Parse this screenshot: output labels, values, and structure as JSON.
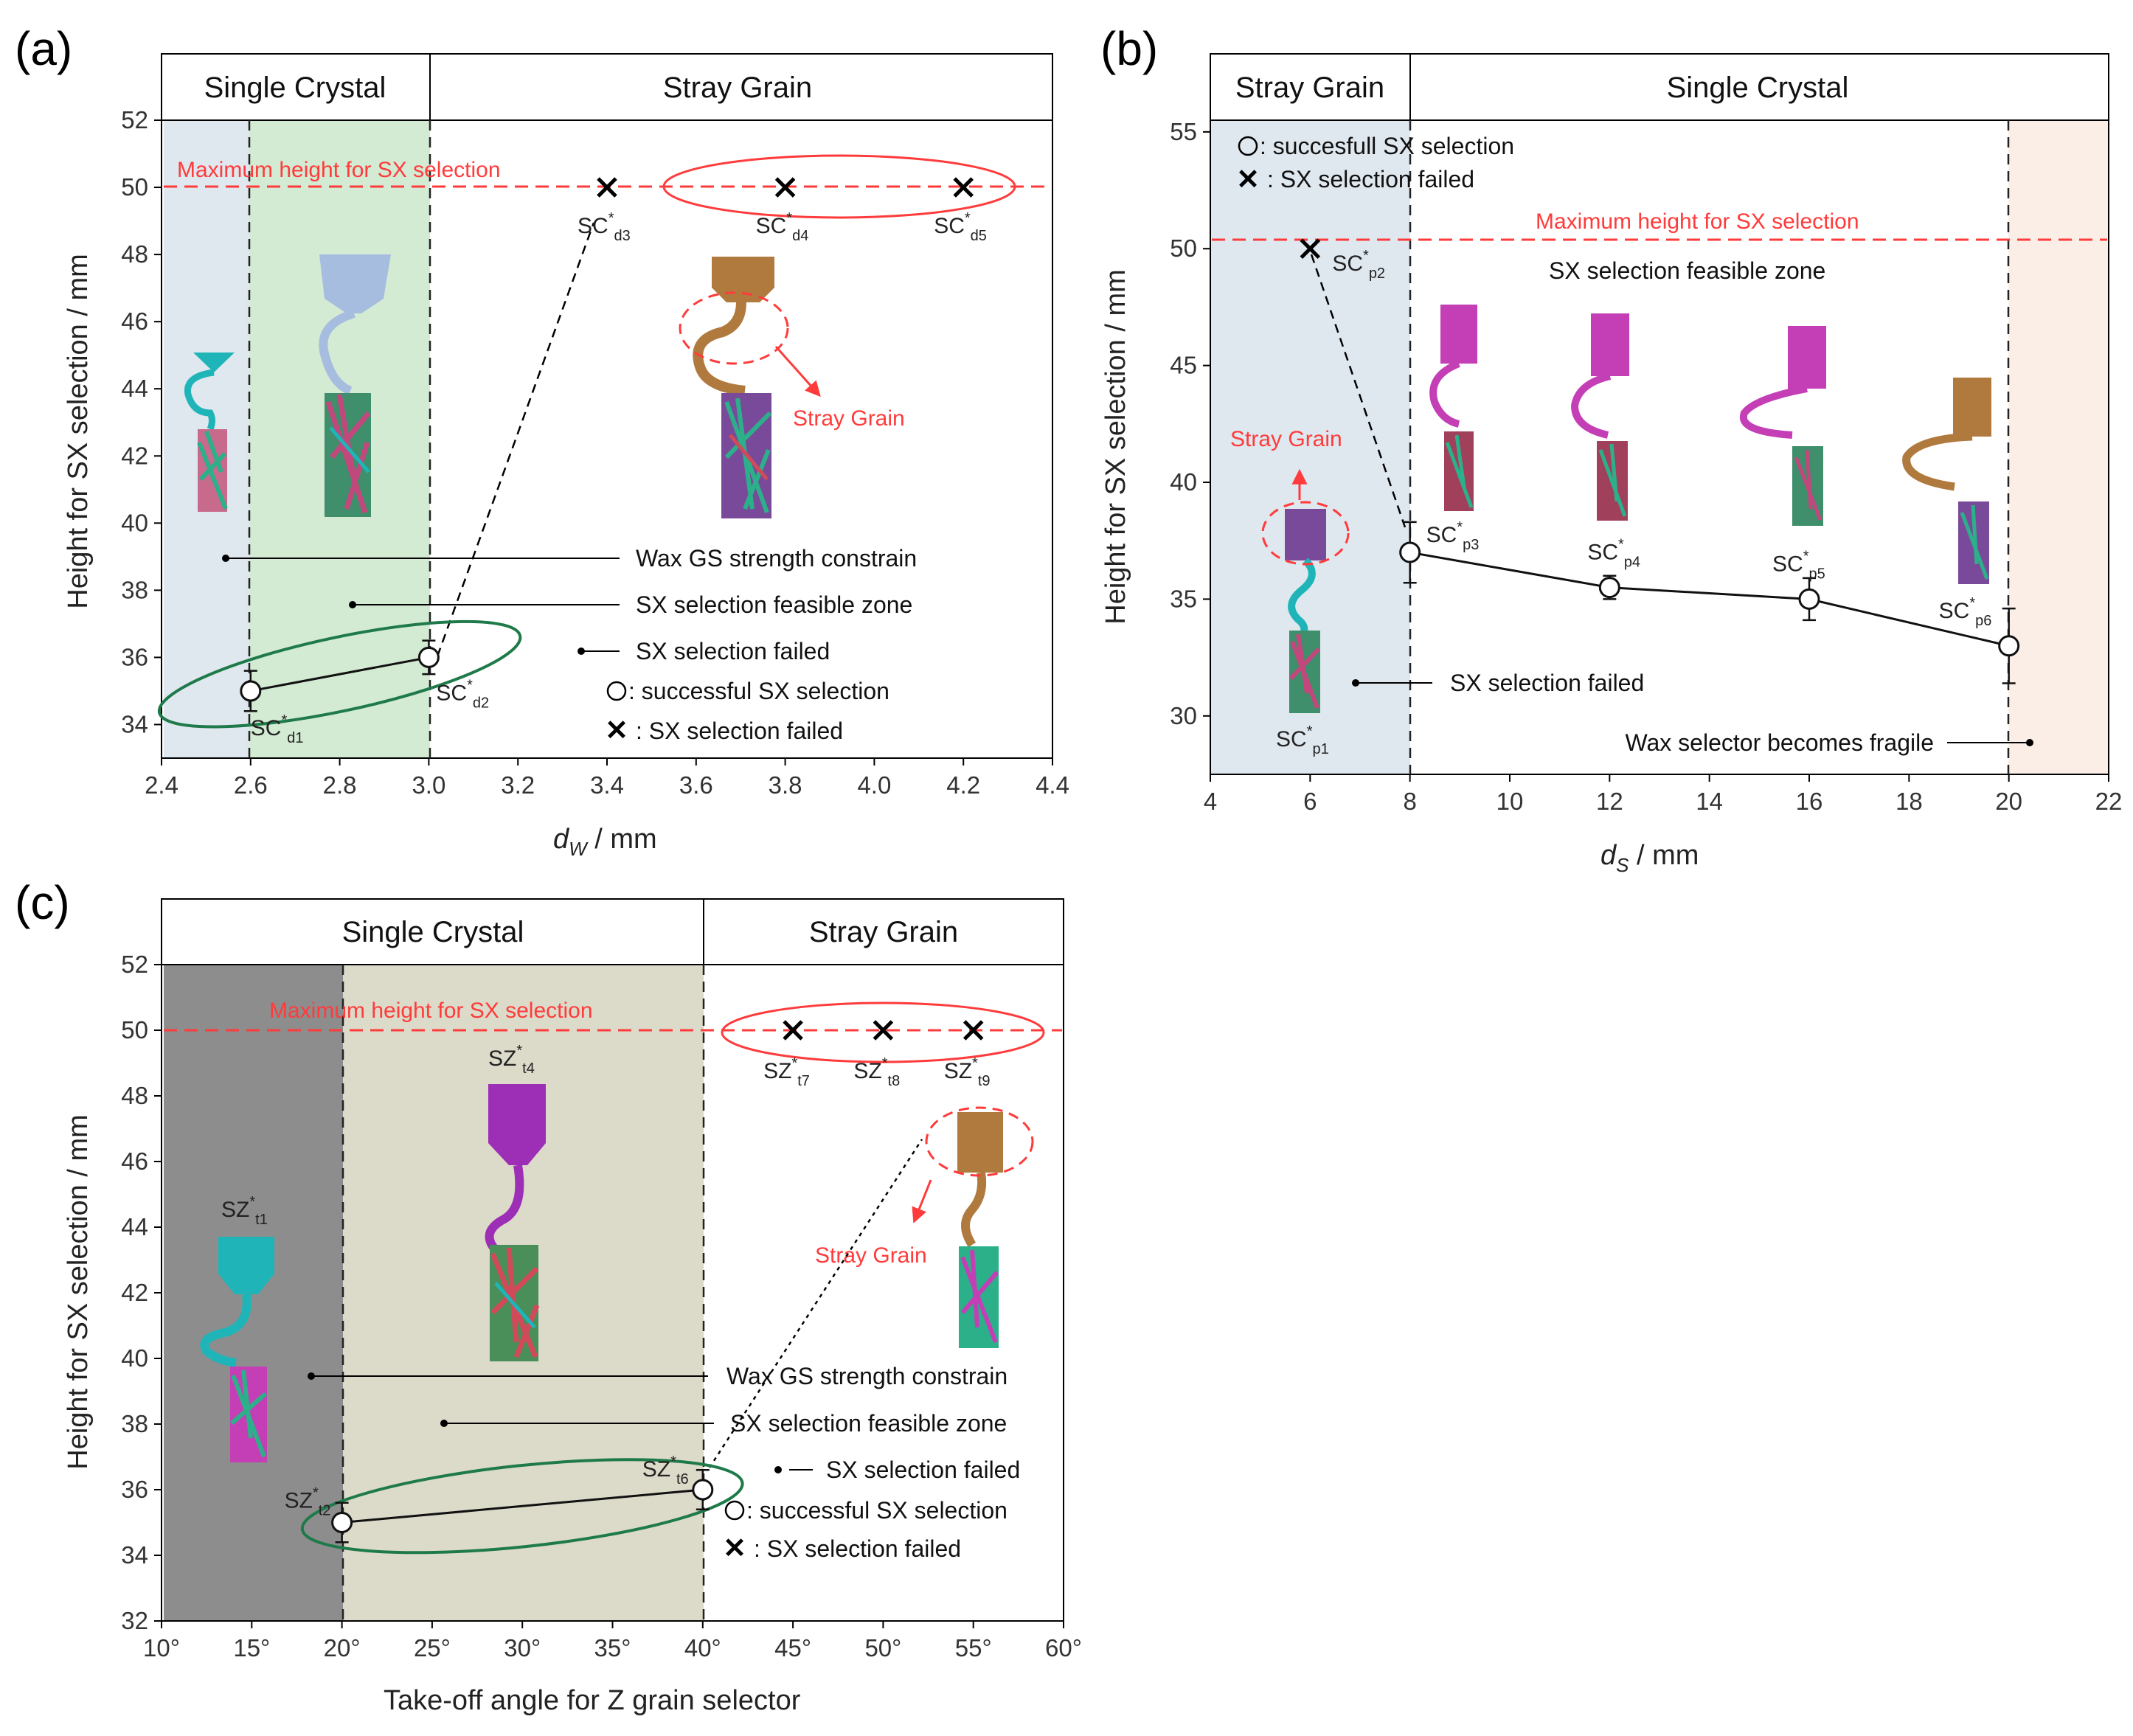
{
  "colors": {
    "red": "#ff3b3b",
    "green_ellipse": "#1f7a4a",
    "zone_blue": "#dfe7ef",
    "zone_green": "#d3ead3",
    "zone_peach": "#fbeee6",
    "zone_gray": "#8d8d8d",
    "zone_olive": "#dcdac9"
  },
  "chart_data": [
    {
      "panel": "(a)",
      "type": "line",
      "header": [
        "Single Crystal",
        "Stray Grain"
      ],
      "xlabel_main": "d",
      "xlabel_sub": "W",
      "xlabel_unit": " / mm",
      "ylabel": "Height for SX selection / mm",
      "xlim": [
        2.4,
        4.4
      ],
      "ylim": [
        33.0,
        52.0
      ],
      "x_ticks": [
        "2.4",
        "2.6",
        "2.8",
        "3.0",
        "3.2",
        "3.4",
        "3.6",
        "3.8",
        "4.0",
        "4.2",
        "4.4"
      ],
      "y_ticks": [
        "34",
        "36",
        "38",
        "40",
        "42",
        "44",
        "46",
        "48",
        "50",
        "52"
      ],
      "max_height_label": "Maximum height for SX selection",
      "max_height": 50,
      "success": {
        "points": [
          {
            "x": 2.6,
            "y": 35.0,
            "err": 0.6,
            "label": "SC",
            "sub": "d1"
          },
          {
            "x": 3.0,
            "y": 36.0,
            "err": 0.5,
            "label": "SC",
            "sub": "d2"
          }
        ]
      },
      "failed": {
        "points": [
          {
            "x": 3.4,
            "y": 50.0,
            "label": "SC",
            "sub": "d3"
          },
          {
            "x": 3.8,
            "y": 50.0,
            "label": "SC",
            "sub": "d4"
          },
          {
            "x": 4.2,
            "y": 50.0,
            "label": "SC",
            "sub": "d5"
          }
        ]
      },
      "annotations": {
        "wax_constraint": "Wax GS strength constrain",
        "feasible_zone": "SX selection feasible zone",
        "failed_zone": "SX selection failed",
        "stray_grain": "Stray Grain"
      },
      "legend": {
        "success": ": successful SX selection",
        "failed": ": SX selection failed"
      }
    },
    {
      "panel": "(b)",
      "type": "line",
      "header": [
        "Stray Grain",
        "Single Crystal"
      ],
      "xlabel_main": "d",
      "xlabel_sub": "S",
      "xlabel_unit": " / mm",
      "ylabel": "Height for SX selection / mm",
      "xlim": [
        4,
        22
      ],
      "ylim": [
        27.5,
        55.5
      ],
      "x_ticks": [
        "4",
        "6",
        "8",
        "10",
        "12",
        "14",
        "16",
        "18",
        "20",
        "22"
      ],
      "y_ticks": [
        "30",
        "35",
        "40",
        "45",
        "50",
        "55"
      ],
      "max_height_label": "Maximum height for SX selection",
      "max_height": 50,
      "success": {
        "points": [
          {
            "x": 8,
            "y": 37.0,
            "err": 1.3,
            "label": "SC",
            "sub": "p3"
          },
          {
            "x": 12,
            "y": 35.5,
            "err": 0.5,
            "label": "SC",
            "sub": "p4"
          },
          {
            "x": 16,
            "y": 35.0,
            "err": 0.9,
            "label": "SC",
            "sub": "p5"
          },
          {
            "x": 20,
            "y": 33.0,
            "err": 1.6,
            "label": "SC",
            "sub": "p6"
          }
        ]
      },
      "failed": {
        "points": [
          {
            "x": 6,
            "y": 50.0,
            "label": "SC",
            "sub": "p2"
          }
        ]
      },
      "extra_labels": [
        {
          "label": "SC",
          "sub": "p1"
        }
      ],
      "annotations": {
        "feasible_zone": "SX selection feasible zone",
        "failed_zone": "SX selection failed",
        "fragile": "Wax selector becomes fragile",
        "stray_grain": "Stray Grain"
      },
      "legend": {
        "success": ": succesfull SX selection",
        "failed": ": SX selection failed"
      }
    },
    {
      "panel": "(c)",
      "type": "line",
      "header": [
        "Single Crystal",
        "Stray Grain"
      ],
      "xlabel": "Take-off angle for Z grain selector",
      "ylabel": "Height for SX selection / mm",
      "xlim": [
        10,
        60
      ],
      "ylim": [
        32.0,
        52.0
      ],
      "x_ticks": [
        "10°",
        "15°",
        "20°",
        "25°",
        "30°",
        "35°",
        "40°",
        "45°",
        "50°",
        "55°",
        "60°"
      ],
      "y_ticks": [
        "32",
        "34",
        "36",
        "38",
        "40",
        "42",
        "44",
        "46",
        "48",
        "50",
        "52"
      ],
      "max_height_label": "Maximum height for SX selection",
      "max_height": 50,
      "success": {
        "points": [
          {
            "x": 20,
            "y": 35.0,
            "err": 0.6,
            "label": "SZ",
            "sub": "t2"
          },
          {
            "x": 40,
            "y": 36.0,
            "err": 0.6,
            "label": "SZ",
            "sub": "t6"
          }
        ]
      },
      "failed": {
        "points": [
          {
            "x": 45,
            "y": 50.0,
            "label": "SZ",
            "sub": "t7"
          },
          {
            "x": 50,
            "y": 50.0,
            "label": "SZ",
            "sub": "t8"
          },
          {
            "x": 55,
            "y": 50.0,
            "label": "SZ",
            "sub": "t9"
          }
        ]
      },
      "extra_labels": [
        {
          "label": "SZ",
          "sub": "t1"
        },
        {
          "label": "SZ",
          "sub": "t4"
        }
      ],
      "annotations": {
        "wax_constraint": "Wax GS strength constrain",
        "feasible_zone": "SX selection feasible zone",
        "failed_zone": "SX selection failed",
        "stray_grain": "Stray Grain"
      },
      "legend": {
        "success": ": successful SX selection",
        "failed": ": SX selection failed"
      }
    }
  ]
}
